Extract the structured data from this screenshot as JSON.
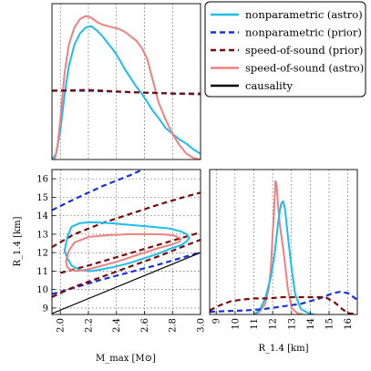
{
  "chart_data": {
    "type": "corner",
    "legend": {
      "placement": "top-right",
      "entries": [
        {
          "label": "nonparametric (astro)",
          "color": "#1EBCF0",
          "dash": "solid"
        },
        {
          "label": "nonparametric (prior)",
          "color": "#1530E0",
          "dash": "dashed"
        },
        {
          "label": "speed-of-sound (prior)",
          "color": "#7B0A0A",
          "dash": "dashed"
        },
        {
          "label": "speed-of-sound (astro)",
          "color": "#F08080",
          "dash": "solid"
        },
        {
          "label": "causality",
          "color": "#000000",
          "dash": "solid"
        }
      ]
    },
    "xlabel_mmax": "M_max [M⊙]",
    "ylabel_r14": "R_1.4 [km]",
    "xlabel_r14": "R_1.4 [km]",
    "mmax_ticks": [
      "2.0",
      "2.2",
      "2.4",
      "2.6",
      "2.8",
      "3.0"
    ],
    "r14_ticks": [
      "9",
      "10",
      "11",
      "12",
      "13",
      "14",
      "15",
      "16"
    ],
    "mmax_range": [
      1.94,
      3.0
    ],
    "r14_range": [
      8.65,
      16.5
    ],
    "grid": true,
    "mmax_marginal": [
      {
        "series": "nonparametric (astro)",
        "x": [
          1.94,
          1.97,
          2.0,
          2.03,
          2.06,
          2.1,
          2.14,
          2.18,
          2.22,
          2.26,
          2.3,
          2.34,
          2.38,
          2.42,
          2.46,
          2.5,
          2.54,
          2.58,
          2.62,
          2.66,
          2.7,
          2.75,
          2.8,
          2.85,
          2.9,
          2.95,
          3.0
        ],
        "y": [
          0.0,
          0.04,
          0.2,
          0.45,
          0.65,
          0.8,
          0.88,
          0.92,
          0.93,
          0.9,
          0.86,
          0.81,
          0.76,
          0.7,
          0.63,
          0.57,
          0.51,
          0.46,
          0.4,
          0.34,
          0.29,
          0.22,
          0.18,
          0.14,
          0.11,
          0.07,
          0.04
        ]
      },
      {
        "series": "speed-of-sound (astro)",
        "x": [
          1.96,
          1.98,
          2.0,
          2.03,
          2.06,
          2.1,
          2.14,
          2.18,
          2.22,
          2.26,
          2.3,
          2.34,
          2.38,
          2.42,
          2.46,
          2.5,
          2.54,
          2.58,
          2.62,
          2.66,
          2.7,
          2.75,
          2.8,
          2.85,
          2.9,
          2.95,
          3.0
        ],
        "y": [
          0.0,
          0.1,
          0.28,
          0.6,
          0.8,
          0.92,
          0.98,
          1.0,
          0.99,
          0.96,
          0.94,
          0.93,
          0.92,
          0.91,
          0.89,
          0.86,
          0.83,
          0.78,
          0.7,
          0.55,
          0.4,
          0.28,
          0.18,
          0.1,
          0.04,
          0.01,
          0.0
        ]
      },
      {
        "series": "nonparametric (prior)",
        "x": [
          1.94,
          2.2,
          2.5,
          2.8,
          3.0
        ],
        "y": [
          0.48,
          0.48,
          0.47,
          0.46,
          0.46
        ]
      },
      {
        "series": "speed-of-sound (prior)",
        "x": [
          1.94,
          2.2,
          2.5,
          2.8,
          3.0
        ],
        "y": [
          0.48,
          0.485,
          0.47,
          0.46,
          0.455
        ]
      }
    ],
    "r14_marginal": [
      {
        "series": "speed-of-sound (astro)",
        "x": [
          11.0,
          11.3,
          11.6,
          11.8,
          11.9,
          12.0,
          12.1,
          12.15,
          12.2,
          12.3,
          12.4,
          12.5,
          12.6,
          12.8,
          13.0,
          13.3,
          13.6
        ],
        "y": [
          0.0,
          0.02,
          0.08,
          0.2,
          0.35,
          0.6,
          0.85,
          1.0,
          0.98,
          0.8,
          0.65,
          0.55,
          0.45,
          0.2,
          0.05,
          0.01,
          0.0
        ]
      },
      {
        "series": "nonparametric (astro)",
        "x": [
          11.0,
          11.3,
          11.6,
          11.9,
          12.1,
          12.3,
          12.45,
          12.55,
          12.65,
          12.8,
          13.0,
          13.2,
          13.5,
          13.9,
          14.2
        ],
        "y": [
          0.0,
          0.03,
          0.12,
          0.28,
          0.45,
          0.7,
          0.83,
          0.85,
          0.8,
          0.6,
          0.35,
          0.15,
          0.04,
          0.01,
          0.0
        ]
      },
      {
        "series": "nonparametric (prior)",
        "x": [
          8.65,
          9.5,
          10.5,
          11.5,
          12.5,
          13.5,
          14.5,
          15.2,
          15.6,
          16.0,
          16.5
        ],
        "y": [
          0.02,
          0.025,
          0.03,
          0.04,
          0.06,
          0.08,
          0.12,
          0.16,
          0.17,
          0.16,
          0.11
        ]
      },
      {
        "series": "speed-of-sound (prior)",
        "x": [
          8.65,
          9.2,
          9.8,
          10.3,
          11.0,
          11.8,
          12.5,
          13.2,
          14.0,
          14.8,
          15.3,
          15.7,
          16.0,
          16.5
        ],
        "y": [
          0.03,
          0.07,
          0.1,
          0.11,
          0.12,
          0.12,
          0.13,
          0.13,
          0.13,
          0.13,
          0.09,
          0.04,
          0.01,
          0.0
        ]
      }
    ],
    "joint": [
      {
        "series": "nonparametric (prior)",
        "closed": false,
        "x": [
          1.94,
          2.1,
          2.3,
          2.5,
          2.7
        ],
        "y": [
          14.3,
          14.9,
          15.6,
          16.2,
          16.9
        ]
      },
      {
        "series": "nonparametric (prior)",
        "closed": false,
        "x": [
          1.94,
          2.1,
          2.3,
          2.5,
          2.7,
          2.9,
          3.0
        ],
        "y": [
          9.75,
          10.1,
          10.55,
          10.95,
          11.35,
          11.8,
          12.0
        ]
      },
      {
        "series": "speed-of-sound (prior)",
        "closed": false,
        "x": [
          1.94,
          2.1,
          2.3,
          2.5,
          2.7,
          2.9,
          3.0
        ],
        "y": [
          12.3,
          13.0,
          13.6,
          14.1,
          14.6,
          15.05,
          15.25
        ]
      },
      {
        "series": "speed-of-sound (prior)",
        "closed": false,
        "x": [
          1.94,
          2.1,
          2.3,
          2.5,
          2.7,
          2.9,
          3.0
        ],
        "y": [
          9.6,
          10.15,
          10.7,
          11.25,
          11.8,
          12.4,
          12.7
        ]
      },
      {
        "series": "speed-of-sound (prior)",
        "closed": false,
        "x": [
          2.0,
          2.2,
          2.4,
          2.6,
          2.8,
          3.0
        ],
        "y": [
          10.9,
          11.3,
          11.75,
          12.2,
          12.65,
          13.1
        ]
      },
      {
        "series": "nonparametric (astro)",
        "closed": true,
        "x": [
          2.03,
          2.05,
          2.08,
          2.14,
          2.22,
          2.35,
          2.5,
          2.65,
          2.78,
          2.86,
          2.9,
          2.92,
          2.9,
          2.86,
          2.78,
          2.7,
          2.6,
          2.5,
          2.4,
          2.3,
          2.22,
          2.14,
          2.08,
          2.05
        ],
        "y": [
          12.1,
          12.85,
          13.4,
          13.6,
          13.65,
          13.6,
          13.5,
          13.4,
          13.3,
          13.15,
          13.0,
          12.8,
          12.6,
          12.4,
          12.2,
          11.95,
          11.7,
          11.45,
          11.25,
          11.1,
          11.0,
          11.05,
          11.3,
          11.7
        ]
      },
      {
        "series": "speed-of-sound (astro)",
        "closed": true,
        "x": [
          2.04,
          2.06,
          2.1,
          2.2,
          2.35,
          2.5,
          2.65,
          2.75,
          2.82,
          2.86,
          2.85,
          2.8,
          2.7,
          2.6,
          2.5,
          2.4,
          2.3,
          2.2,
          2.12,
          2.08,
          2.05
        ],
        "y": [
          11.5,
          12.1,
          12.55,
          12.85,
          12.95,
          13.0,
          13.0,
          12.98,
          12.9,
          12.75,
          12.6,
          12.45,
          12.25,
          12.0,
          11.75,
          11.5,
          11.3,
          11.1,
          11.0,
          11.05,
          11.2
        ]
      },
      {
        "series": "causality",
        "closed": false,
        "x": [
          1.94,
          3.0
        ],
        "y": [
          8.7,
          12.0
        ]
      }
    ]
  }
}
